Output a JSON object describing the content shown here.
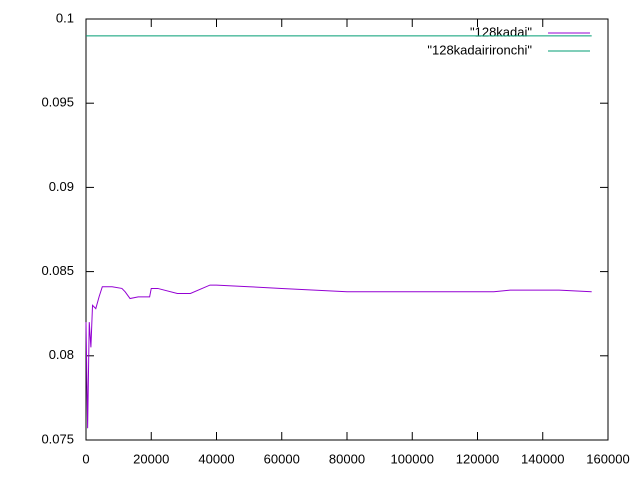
{
  "chart_data": {
    "type": "line",
    "series": [
      {
        "name": "\"128kadai\"",
        "color": "#9400d3",
        "x": [
          0,
          500,
          1000,
          1500,
          2000,
          3000,
          4000,
          5000,
          8000,
          11000,
          12000,
          13500,
          16000,
          19500,
          20000,
          22000,
          28000,
          32000,
          38000,
          40000,
          50000,
          60000,
          80000,
          100000,
          125000,
          130000,
          145000,
          155000
        ],
        "values": [
          0.082,
          0.0757,
          0.082,
          0.0805,
          0.083,
          0.0828,
          0.0835,
          0.0841,
          0.0841,
          0.084,
          0.0838,
          0.0834,
          0.0835,
          0.0835,
          0.084,
          0.084,
          0.0837,
          0.0837,
          0.0842,
          0.0842,
          0.0841,
          0.084,
          0.0838,
          0.0838,
          0.0838,
          0.0839,
          0.0839,
          0.0838
        ]
      },
      {
        "name": "\"128kadairironchi\"",
        "color": "#009e73",
        "x": [
          0,
          155000
        ],
        "values": [
          0.099,
          0.099
        ]
      }
    ],
    "xlim": [
      0,
      160000
    ],
    "xticks": [
      0,
      20000,
      40000,
      60000,
      80000,
      100000,
      120000,
      140000,
      160000
    ],
    "ylim": [
      0.075,
      0.1
    ],
    "yticks": [
      0.075,
      0.08,
      0.085,
      0.09,
      0.095,
      0.1
    ],
    "grid": false,
    "legend": "top-right"
  }
}
